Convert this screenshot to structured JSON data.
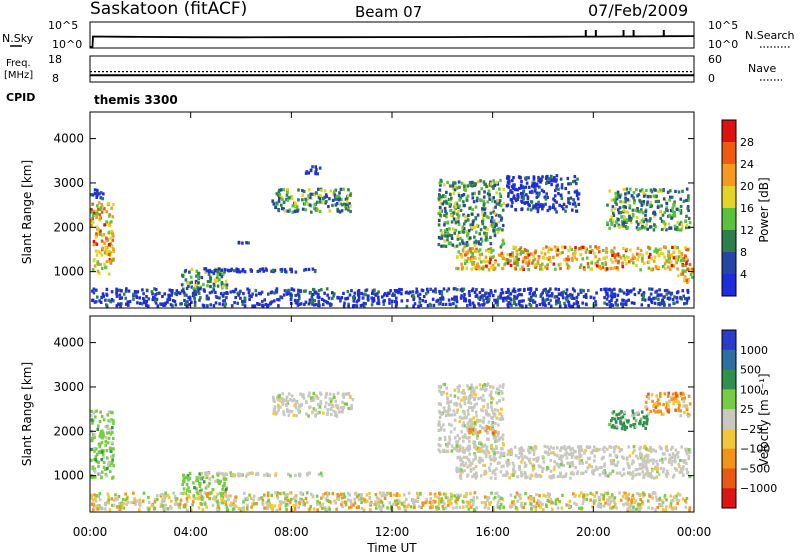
{
  "header": {
    "title": "Saskatoon (fitACF)",
    "beam": "Beam 07",
    "date": "07/Feb/2009"
  },
  "strip_labels": {
    "nsky": "N.Sky",
    "nsearch": "N.Search",
    "freq_top": "Freq.",
    "freq_unit": "[MHz]",
    "nave": "Nave",
    "cpid": "CPID",
    "cpid_value": "themis 3300"
  },
  "chart_data": [
    {
      "type": "line",
      "panel": "noise",
      "left_ticks": [
        "10^5",
        "10^0"
      ],
      "right_ticks": [
        "10^5",
        "10^0"
      ],
      "series": [
        {
          "name": "N.Sky",
          "style": "solid",
          "x": [
            0,
            0.1,
            0.12,
            2,
            4,
            6,
            8,
            10,
            12,
            14,
            16,
            18,
            19.5,
            20,
            21,
            22,
            22.5,
            23,
            24
          ],
          "y": [
            0,
            0,
            0.75,
            0.72,
            0.7,
            0.69,
            0.7,
            0.7,
            0.71,
            0.71,
            0.72,
            0.73,
            0.74,
            0.74,
            0.75,
            0.76,
            0.76,
            0.77,
            0.78
          ]
        },
        {
          "name": "N.Search",
          "style": "dotted",
          "spikes_x": [
            19.7,
            20.1,
            21.2,
            21.6,
            22.8
          ]
        }
      ]
    },
    {
      "type": "line",
      "panel": "frequency",
      "left_ticks": [
        18,
        8
      ],
      "right_ticks": [
        60,
        0
      ],
      "series": [
        {
          "name": "Freq.",
          "style": "solid",
          "y_mhz": 10.6
        },
        {
          "name": "Nave",
          "style": "dotted",
          "y_count": 24
        }
      ]
    },
    {
      "type": "heatmap",
      "panel": "power",
      "xlabel": "",
      "ylabel": "Slant Range [km]",
      "xlim": [
        0,
        24
      ],
      "ylim": [
        180,
        4600
      ],
      "yticks": [
        1000,
        2000,
        3000,
        4000
      ],
      "colorbar": {
        "label": "Power [dB]",
        "ticks": [
          4,
          8,
          12,
          16,
          20,
          24,
          28
        ],
        "range": [
          0,
          32
        ],
        "colors": [
          "#1e2cdc",
          "#2546a6",
          "#2f7d4a",
          "#58c33a",
          "#e3d42a",
          "#f59a1c",
          "#ee5a12",
          "#e01010"
        ]
      },
      "regions": [
        {
          "t": [
            0.0,
            1.0
          ],
          "r": [
            900,
            2600
          ],
          "level": "high"
        },
        {
          "t": [
            0.0,
            0.6
          ],
          "r": [
            2600,
            2900
          ],
          "level": "low"
        },
        {
          "t": [
            3.6,
            5.5
          ],
          "r": [
            550,
            1100
          ],
          "level": "mid"
        },
        {
          "t": [
            4.5,
            9.3
          ],
          "r": [
            950,
            1100
          ],
          "level": "low"
        },
        {
          "t": [
            5.8,
            6.5
          ],
          "r": [
            1600,
            1700
          ],
          "level": "low"
        },
        {
          "t": [
            7.2,
            10.5
          ],
          "r": [
            2300,
            2900
          ],
          "level": "mid"
        },
        {
          "t": [
            8.5,
            9.2
          ],
          "r": [
            3150,
            3400
          ],
          "level": "low"
        },
        {
          "t": [
            0.0,
            23.9
          ],
          "r": [
            180,
            650
          ],
          "level": "low"
        },
        {
          "t": [
            13.8,
            16.5
          ],
          "r": [
            1500,
            3100
          ],
          "level": "mid"
        },
        {
          "t": [
            14.5,
            23.9
          ],
          "r": [
            1000,
            1600
          ],
          "level": "high"
        },
        {
          "t": [
            16.5,
            19.5
          ],
          "r": [
            2300,
            3200
          ],
          "level": "low"
        },
        {
          "t": [
            20.5,
            23.9
          ],
          "r": [
            1900,
            2900
          ],
          "level": "mid"
        },
        {
          "t": [
            23.3,
            24.0
          ],
          "r": [
            700,
            1100
          ],
          "level": "high"
        }
      ]
    },
    {
      "type": "heatmap",
      "panel": "velocity",
      "xlabel": "Time UT",
      "ylabel": "Slant Range [km]",
      "xlim": [
        0,
        24
      ],
      "ylim": [
        180,
        4600
      ],
      "yticks": [
        1000,
        2000,
        3000,
        4000
      ],
      "xticks": [
        "00:00",
        "04:00",
        "08:00",
        "12:00",
        "16:00",
        "20:00",
        "00:00"
      ],
      "colorbar": {
        "label": "Velocity [m s⁻¹]",
        "ticks": [
          "1000",
          "500",
          "100",
          "25",
          "−25",
          "−100",
          "−500",
          "−1000"
        ],
        "colors": [
          "#2a3bcc",
          "#2d6fa0",
          "#2f8f4c",
          "#77cc44",
          "#c8c8c0",
          "#f2c83a",
          "#f39418",
          "#e85a12",
          "#dd1414"
        ]
      },
      "regions": [
        {
          "t": [
            0.0,
            1.0
          ],
          "r": [
            900,
            2500
          ],
          "level": "green"
        },
        {
          "t": [
            3.6,
            5.5
          ],
          "r": [
            550,
            1100
          ],
          "level": "green"
        },
        {
          "t": [
            4.5,
            9.3
          ],
          "r": [
            950,
            1100
          ],
          "level": "grey"
        },
        {
          "t": [
            7.2,
            10.5
          ],
          "r": [
            2300,
            2900
          ],
          "level": "grey"
        },
        {
          "t": [
            0.0,
            23.9
          ],
          "r": [
            180,
            650
          ],
          "level": "mix"
        },
        {
          "t": [
            13.8,
            16.5
          ],
          "r": [
            1500,
            3100
          ],
          "level": "grey"
        },
        {
          "t": [
            14.5,
            23.9
          ],
          "r": [
            900,
            1700
          ],
          "level": "grey"
        },
        {
          "t": [
            15.0,
            16.2
          ],
          "r": [
            1900,
            2200
          ],
          "level": "orange"
        },
        {
          "t": [
            20.5,
            22.2
          ],
          "r": [
            2000,
            2500
          ],
          "level": "dkgreen"
        },
        {
          "t": [
            22.0,
            23.9
          ],
          "r": [
            2300,
            2900
          ],
          "level": "orange"
        }
      ]
    }
  ]
}
